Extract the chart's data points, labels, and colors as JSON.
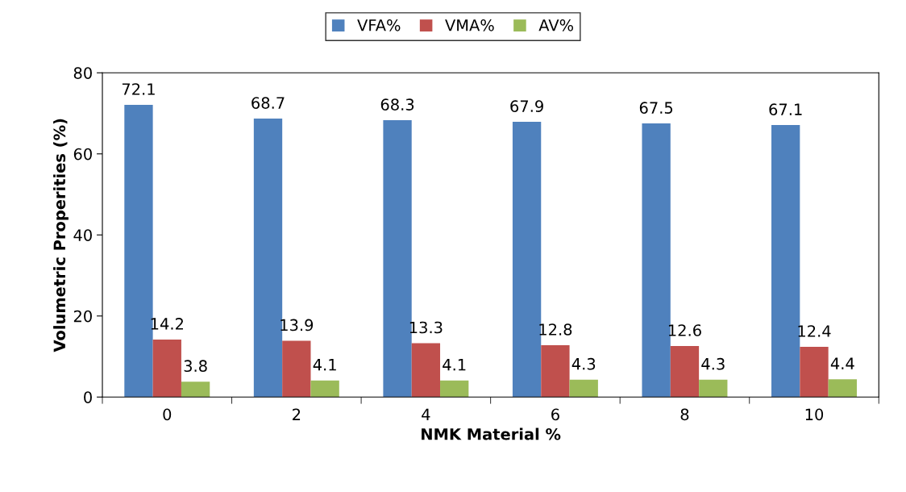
{
  "chart_data": {
    "type": "bar",
    "xlabel": "NMK Material %",
    "ylabel": "Volumetric Properities (%)",
    "categories": [
      "0",
      "2",
      "4",
      "6",
      "8",
      "10"
    ],
    "series": [
      {
        "name": "VFA%",
        "color": "#4f81bd",
        "values": [
          72.1,
          68.7,
          68.3,
          67.9,
          67.5,
          67.1
        ]
      },
      {
        "name": "VMA%",
        "color": "#c0504d",
        "values": [
          14.2,
          13.9,
          13.3,
          12.8,
          12.6,
          12.4
        ]
      },
      {
        "name": "AV%",
        "color": "#9bbb59",
        "values": [
          3.8,
          4.1,
          4.1,
          4.3,
          4.3,
          4.4
        ]
      }
    ],
    "ylim": [
      0,
      80
    ],
    "yticks": [
      0,
      20,
      40,
      60,
      80
    ],
    "grid": false,
    "legend": "top",
    "data_labels": true
  }
}
